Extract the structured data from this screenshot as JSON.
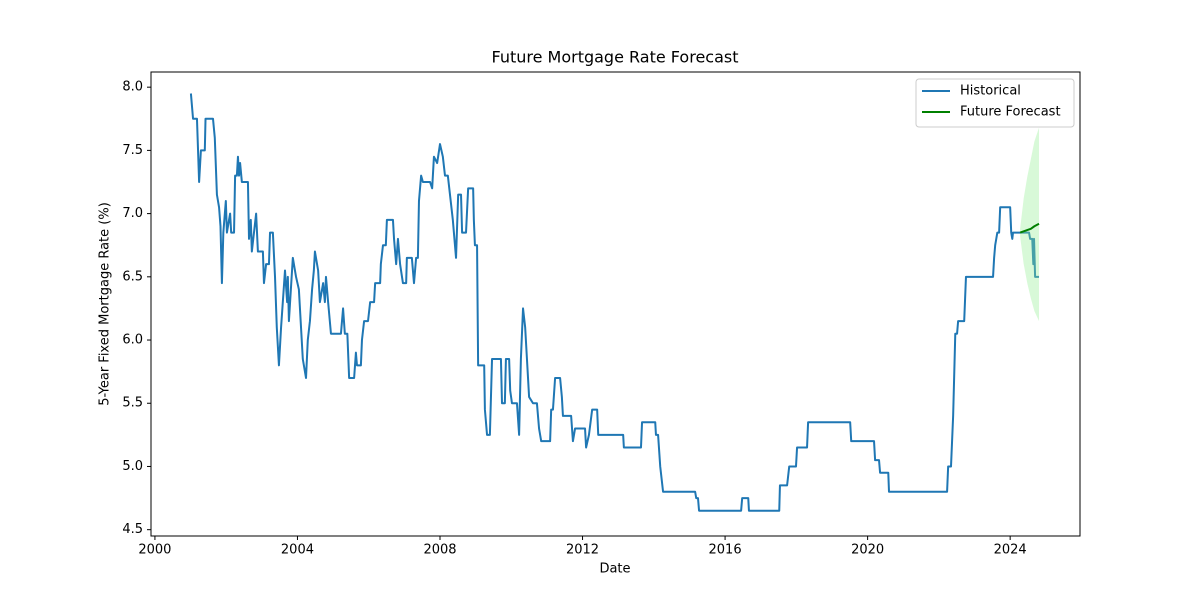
{
  "chart_data": {
    "type": "line",
    "title": "Future Mortgage Rate Forecast",
    "x_label": "Date",
    "y_label": "5-Year Fixed Mortgage Rate (%)",
    "xlim": [
      1999.89,
      2025.96
    ],
    "ylim": [
      4.45,
      8.12
    ],
    "xticks": [
      2000,
      2004,
      2008,
      2012,
      2016,
      2020,
      2024
    ],
    "yticks": [
      4.5,
      {
        "value": 5,
        "label": "5.0"
      },
      5.5,
      {
        "value": 6,
        "label": "6.0"
      },
      6.5,
      {
        "value": 7,
        "label": "7.0"
      },
      7.5,
      {
        "value": 8,
        "label": "8.0"
      }
    ],
    "grid": false,
    "legend": "upper right",
    "series": [
      {
        "name": "Historical",
        "color": "#1f77b4",
        "x": [
          2001.01,
          2001.07,
          2001.18,
          2001.24,
          2001.29,
          2001.4,
          2001.42,
          2001.63,
          2001.68,
          2001.74,
          2001.8,
          2001.84,
          2001.88,
          2001.92,
          2001.99,
          2002.02,
          2002.11,
          2002.14,
          2002.22,
          2002.25,
          2002.3,
          2002.33,
          2002.36,
          2002.39,
          2002.44,
          2002.61,
          2002.64,
          2002.69,
          2002.72,
          2002.84,
          2002.89,
          2003.03,
          2003.06,
          2003.12,
          2003.2,
          2003.23,
          2003.31,
          2003.37,
          2003.42,
          2003.48,
          2003.54,
          2003.65,
          2003.71,
          2003.73,
          2003.76,
          2003.87,
          2003.96,
          2004.04,
          2004.1,
          2004.15,
          2004.24,
          2004.29,
          2004.35,
          2004.41,
          2004.46,
          2004.49,
          2004.58,
          2004.63,
          2004.72,
          2004.77,
          2004.8,
          2004.86,
          2004.94,
          2005.22,
          2005.28,
          2005.33,
          2005.4,
          2005.45,
          2005.59,
          2005.64,
          2005.67,
          2005.78,
          2005.81,
          2005.87,
          2005.98,
          2006.04,
          2006.15,
          2006.18,
          2006.32,
          2006.34,
          2006.4,
          2006.48,
          2006.51,
          2006.68,
          2006.71,
          2006.77,
          2006.82,
          2006.88,
          2006.96,
          2007.05,
          2007.07,
          2007.21,
          2007.27,
          2007.33,
          2007.38,
          2007.41,
          2007.47,
          2007.52,
          2007.72,
          2007.78,
          2007.83,
          2007.92,
          2008.0,
          2008.08,
          2008.14,
          2008.22,
          2008.28,
          2008.36,
          2008.45,
          2008.51,
          2008.59,
          2008.62,
          2008.73,
          2008.79,
          2008.93,
          2008.95,
          2008.98,
          2009.04,
          2009.07,
          2009.24,
          2009.26,
          2009.32,
          2009.4,
          2009.46,
          2009.71,
          2009.74,
          2009.82,
          2009.85,
          2009.94,
          2009.97,
          2010.02,
          2010.16,
          2010.22,
          2010.27,
          2010.33,
          2010.39,
          2010.44,
          2010.5,
          2010.61,
          2010.72,
          2010.78,
          2010.84,
          2011.09,
          2011.12,
          2011.17,
          2011.23,
          2011.37,
          2011.42,
          2011.45,
          2011.68,
          2011.73,
          2011.79,
          2012.07,
          2012.1,
          2012.18,
          2012.27,
          2012.41,
          2012.44,
          2013.14,
          2013.16,
          2013.64,
          2013.67,
          2014.04,
          2014.06,
          2014.12,
          2014.18,
          2014.26,
          2015.16,
          2015.19,
          2015.24,
          2015.27,
          2016.45,
          2016.48,
          2016.65,
          2016.67,
          2017.52,
          2017.54,
          2017.74,
          2017.8,
          2017.99,
          2018.02,
          2018.3,
          2018.33,
          2019.51,
          2019.54,
          2020.18,
          2020.21,
          2020.32,
          2020.35,
          2020.58,
          2020.6,
          2022.23,
          2022.26,
          2022.34,
          2022.4,
          2022.46,
          2022.51,
          2022.54,
          2022.71,
          2022.76,
          2023.52,
          2023.55,
          2023.58,
          2023.64,
          2023.69,
          2023.72,
          2024.0,
          2024.03,
          2024.06,
          2024.08,
          2024.53,
          2024.56,
          2024.62,
          2024.65,
          2024.67,
          2024.7,
          2024.81
        ],
        "values": [
          7.95,
          7.75,
          7.75,
          7.25,
          7.5,
          7.5,
          7.75,
          7.75,
          7.6,
          7.15,
          7.05,
          6.9,
          6.45,
          6.85,
          7.1,
          6.85,
          7.0,
          6.85,
          6.85,
          7.3,
          7.3,
          7.45,
          7.3,
          7.4,
          7.25,
          7.25,
          6.8,
          6.95,
          6.7,
          7.0,
          6.7,
          6.7,
          6.45,
          6.6,
          6.6,
          6.85,
          6.85,
          6.5,
          6.1,
          5.8,
          6.1,
          6.55,
          6.3,
          6.5,
          6.15,
          6.65,
          6.5,
          6.4,
          6.1,
          5.85,
          5.7,
          6.0,
          6.15,
          6.4,
          6.55,
          6.7,
          6.55,
          6.3,
          6.45,
          6.3,
          6.5,
          6.3,
          6.05,
          6.05,
          6.25,
          6.05,
          6.05,
          5.7,
          5.7,
          5.9,
          5.8,
          5.8,
          6.0,
          6.15,
          6.15,
          6.3,
          6.3,
          6.45,
          6.45,
          6.6,
          6.75,
          6.75,
          6.95,
          6.95,
          6.8,
          6.6,
          6.8,
          6.6,
          6.45,
          6.45,
          6.65,
          6.65,
          6.45,
          6.65,
          6.65,
          7.1,
          7.3,
          7.25,
          7.25,
          7.2,
          7.45,
          7.4,
          7.55,
          7.45,
          7.3,
          7.3,
          7.15,
          6.95,
          6.65,
          7.15,
          7.15,
          6.85,
          6.85,
          7.2,
          7.2,
          6.95,
          6.75,
          6.75,
          5.8,
          5.8,
          5.45,
          5.25,
          5.25,
          5.85,
          5.85,
          5.5,
          5.5,
          5.85,
          5.85,
          5.6,
          5.5,
          5.5,
          5.25,
          5.85,
          6.25,
          6.1,
          5.85,
          5.55,
          5.5,
          5.5,
          5.3,
          5.2,
          5.2,
          5.45,
          5.45,
          5.7,
          5.7,
          5.55,
          5.4,
          5.4,
          5.2,
          5.3,
          5.3,
          5.15,
          5.25,
          5.45,
          5.45,
          5.25,
          5.25,
          5.15,
          5.15,
          5.35,
          5.35,
          5.25,
          5.25,
          5.0,
          4.8,
          4.8,
          4.75,
          4.75,
          4.65,
          4.65,
          4.75,
          4.75,
          4.65,
          4.65,
          4.85,
          4.85,
          5.0,
          5.0,
          5.15,
          5.15,
          5.35,
          5.35,
          5.2,
          5.2,
          5.05,
          5.05,
          4.95,
          4.95,
          4.8,
          4.8,
          5.0,
          5.0,
          5.4,
          6.05,
          6.05,
          6.15,
          6.15,
          6.5,
          6.5,
          6.65,
          6.75,
          6.85,
          6.85,
          7.05,
          7.05,
          6.85,
          6.8,
          6.85,
          6.85,
          6.8,
          6.8,
          6.6,
          6.8,
          6.5,
          6.5
        ]
      },
      {
        "name": "Future Forecast",
        "color": "#008000",
        "x": [
          2024.28,
          2024.38,
          2024.48,
          2024.58,
          2024.68,
          2024.81
        ],
        "values": [
          6.85,
          6.86,
          6.87,
          6.88,
          6.9,
          6.92
        ],
        "band": {
          "color": "#90ee90",
          "lower": [
            6.82,
            6.6,
            6.45,
            6.33,
            6.23,
            6.15
          ],
          "upper": [
            6.88,
            7.12,
            7.29,
            7.43,
            7.57,
            7.68
          ]
        }
      }
    ]
  }
}
